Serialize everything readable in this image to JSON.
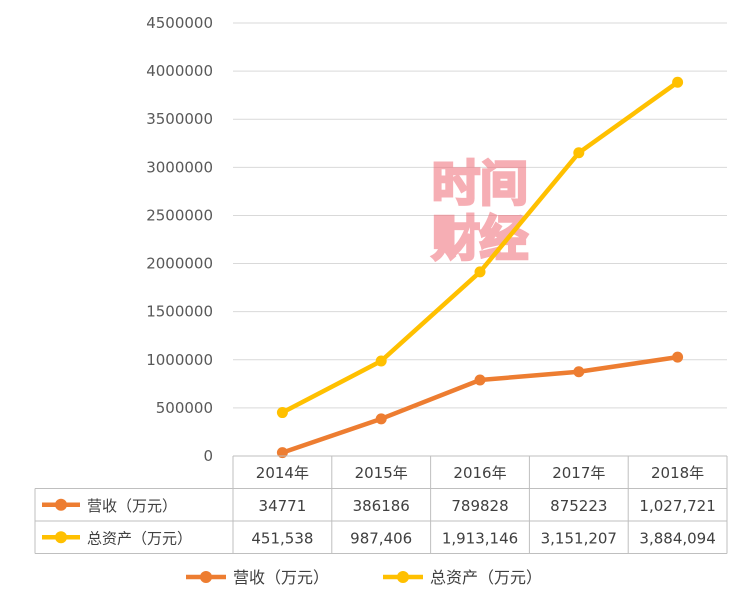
{
  "chart_data": {
    "type": "line",
    "categories": [
      "2014年",
      "2015年",
      "2016年",
      "2017年",
      "2018年"
    ],
    "ylim": [
      0,
      4500000
    ],
    "yticks": [
      "0",
      "500000",
      "1000000",
      "1500000",
      "2000000",
      "2500000",
      "3000000",
      "3500000",
      "4000000",
      "4500000"
    ],
    "grid": true,
    "legend_position": "bottom",
    "series": [
      {
        "name": "营收（万元）",
        "color": "#ED7D31",
        "values": [
          34771,
          386186,
          789828,
          875223,
          1027721
        ],
        "labels": [
          "34771",
          "386186",
          "789828",
          "875223",
          "1,027,721"
        ]
      },
      {
        "name": "总资产（万元）",
        "color": "#FFC000",
        "values": [
          451538,
          987406,
          1913146,
          3151207,
          3884094
        ],
        "labels": [
          "451,538",
          "987,406",
          "1,913,146",
          "3,151,207",
          "3,884,094"
        ]
      }
    ]
  },
  "watermark": {
    "line1": "时间",
    "line2": "财经",
    "color": "#F06D78"
  }
}
